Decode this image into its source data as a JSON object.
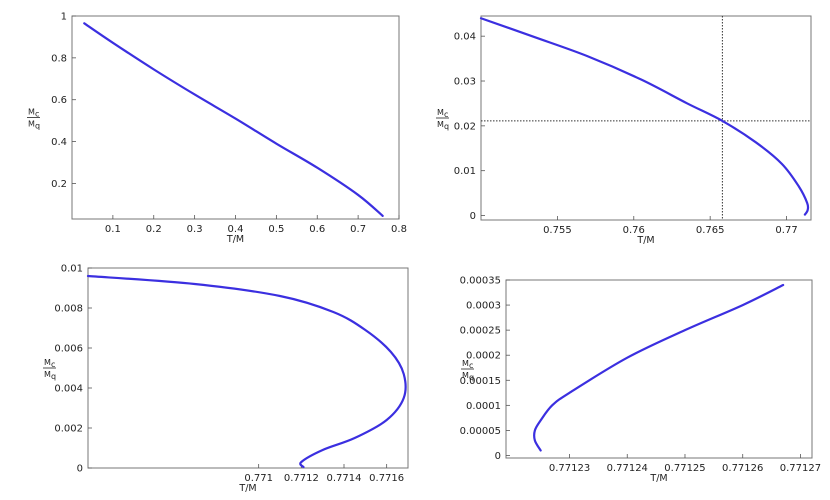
{
  "colors": {
    "curve": "#3b2fe0",
    "frame": "#777777",
    "text": "#222222"
  },
  "chart_data": [
    {
      "type": "line",
      "xlabel": "T/M",
      "ylabel": {
        "numerator": "M",
        "numerator_sub": "c",
        "denominator": "M",
        "denominator_sub": "q"
      },
      "xlim": [
        0.0,
        0.8
      ],
      "ylim": [
        0.03,
        1.0
      ],
      "xticks": [
        "0.1",
        "0.2",
        "0.3",
        "0.4",
        "0.5",
        "0.6",
        "0.7",
        "0.8"
      ],
      "yticks": [
        "0.2",
        "0.4",
        "0.6",
        "0.8",
        "1"
      ],
      "series": [
        {
          "points": [
            [
              0.03,
              0.965
            ],
            [
              0.1,
              0.872
            ],
            [
              0.2,
              0.745
            ],
            [
              0.3,
              0.625
            ],
            [
              0.4,
              0.51
            ],
            [
              0.5,
              0.39
            ],
            [
              0.6,
              0.275
            ],
            [
              0.7,
              0.145
            ],
            [
              0.76,
              0.045
            ]
          ]
        }
      ],
      "reference_lines": []
    },
    {
      "type": "line",
      "xlabel": "T/M",
      "ylabel": {
        "numerator": "M",
        "numerator_sub": "c",
        "denominator": "M",
        "denominator_sub": "q"
      },
      "xlim": [
        0.75,
        0.7716
      ],
      "ylim": [
        -0.001,
        0.0445
      ],
      "xticks": [
        "0.755",
        "0.76",
        "0.765",
        "0.77"
      ],
      "yticks": [
        "0",
        "0.01",
        "0.02",
        "0.03",
        "0.04"
      ],
      "series": [
        {
          "points": [
            [
              0.75,
              0.044
            ],
            [
              0.7535,
              0.0398
            ],
            [
              0.757,
              0.0355
            ],
            [
              0.7605,
              0.0303
            ],
            [
              0.7635,
              0.025
            ],
            [
              0.7658,
              0.0211
            ],
            [
              0.768,
              0.0163
            ],
            [
              0.7697,
              0.0115
            ],
            [
              0.7708,
              0.0065
            ],
            [
              0.77135,
              0.0028
            ],
            [
              0.77138,
              0.0012
            ],
            [
              0.7712,
              0.0002
            ]
          ]
        }
      ],
      "reference_lines": [
        {
          "x": 0.7658
        },
        {
          "y": 0.0211
        }
      ]
    },
    {
      "type": "line",
      "xlabel": "T/M",
      "ylabel": {
        "numerator": "M",
        "numerator_sub": "c",
        "denominator": "M",
        "denominator_sub": "q"
      },
      "xlim": [
        0.7702,
        0.7717
      ],
      "ylim": [
        0.0,
        0.01
      ],
      "xticks": [
        "0.771",
        "0.7712",
        "0.7714",
        "0.7716"
      ],
      "yticks": [
        "0",
        "0.002",
        "0.004",
        "0.006",
        "0.008",
        "0.01"
      ],
      "series": [
        {
          "points": [
            [
              0.7702,
              0.0096
            ],
            [
              0.7707,
              0.0092
            ],
            [
              0.7711,
              0.0086
            ],
            [
              0.77135,
              0.0078
            ],
            [
              0.7715,
              0.0069
            ],
            [
              0.77162,
              0.0058
            ],
            [
              0.77168,
              0.0047
            ],
            [
              0.77168,
              0.0035
            ],
            [
              0.7716,
              0.0024
            ],
            [
              0.77145,
              0.0015
            ],
            [
              0.7713,
              0.0009
            ],
            [
              0.7712,
              0.0003
            ],
            [
              0.77121,
              5e-05
            ]
          ]
        }
      ],
      "reference_lines": []
    },
    {
      "type": "line",
      "xlabel": "T/M",
      "ylabel": {
        "numerator": "M",
        "numerator_sub": "c",
        "denominator": "M",
        "denominator_sub": "q"
      },
      "xlim": [
        0.771219,
        0.771272
      ],
      "ylim": [
        -5e-06,
        0.00035
      ],
      "xticks": [
        "0.77123",
        "0.77124",
        "0.77125",
        "0.77126",
        "0.77127"
      ],
      "yticks": [
        "0",
        "0.00005",
        "0.0001",
        "0.00015",
        "0.0002",
        "0.00025",
        "0.0003",
        "0.00035"
      ],
      "series": [
        {
          "points": [
            [
              0.771225,
              1e-05
            ],
            [
              0.771224,
              3e-05
            ],
            [
              0.771224,
              5e-05
            ],
            [
              0.771225,
              7e-05
            ],
            [
              0.771227,
              0.0001
            ],
            [
              0.77123,
              0.000125
            ],
            [
              0.77124,
              0.000195
            ],
            [
              0.77125,
              0.00025
            ],
            [
              0.77126,
              0.0003
            ],
            [
              0.771267,
              0.00034
            ]
          ]
        }
      ],
      "reference_lines": []
    }
  ]
}
